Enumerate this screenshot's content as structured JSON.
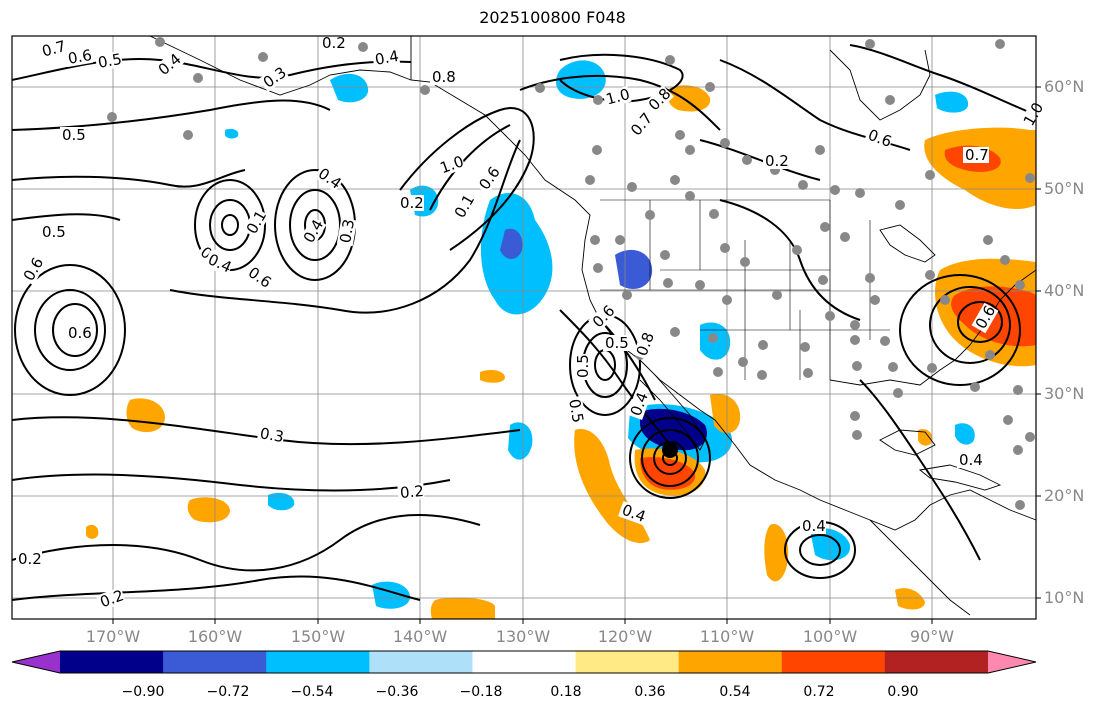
{
  "title": "2025100800 F048",
  "lat_labels": [
    "60°N",
    "50°N",
    "40°N",
    "30°N",
    "20°N",
    "10°N"
  ],
  "lon_labels": [
    "170°W",
    "160°W",
    "150°W",
    "140°W",
    "130°W",
    "120°W",
    "110°W",
    "100°W",
    "90°W"
  ],
  "colorbar": {
    "ticks": [
      "−0.90",
      "−0.72",
      "−0.54",
      "−0.36",
      "−0.18",
      "0.18",
      "0.36",
      "0.54",
      "0.72",
      "0.90"
    ],
    "colors": [
      "#9932cc",
      "#00008b",
      "#3b5bd6",
      "#00bfff",
      "#aee0fa",
      "#ffffff",
      "#ffea85",
      "#ffa500",
      "#ff4500",
      "#b22222",
      "#ff88b0"
    ]
  },
  "contour_labels": [
    "0.7",
    "0.6",
    "0.5",
    "0.4",
    "0.2",
    "0.2",
    "0.4",
    "0.4",
    "0.5",
    "0.3",
    "0.8",
    "1.0",
    "0.8",
    "0.7",
    "0.6",
    "1.0",
    "0.2",
    "0.6",
    "0.7",
    "0.5",
    "0.5",
    "0.6",
    "0.4",
    "0.1",
    "0.4",
    "0.3",
    "0.1",
    "1.0",
    "0.6",
    "0.4",
    "0.6",
    "0.8",
    "0.5",
    "0.3",
    "0.2",
    "0.2",
    "0.4",
    "0.5",
    "0.6",
    "0.4",
    "0.4",
    "0.4",
    "0.6",
    "0.2"
  ],
  "colors": {
    "contour": "#000000",
    "grid": "#888888",
    "marker": "#888888"
  }
}
